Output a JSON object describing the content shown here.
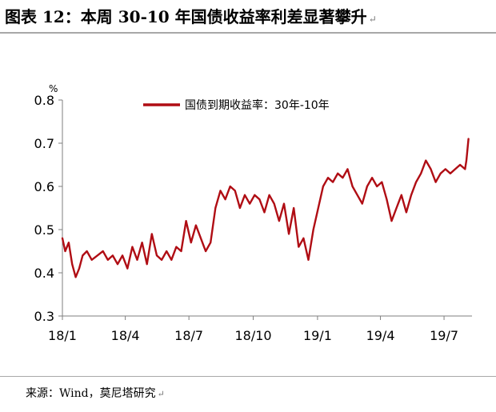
{
  "title": "图表 12：本周 30-10 年国债收益率利差显著攀升",
  "title_mark": "↵",
  "source": "来源：Wind，莫尼塔研究",
  "source_mark": "↵",
  "chart_data": {
    "type": "line",
    "title": "图表 12：本周 30-10 年国债收益率利差显著攀升",
    "xlabel": "",
    "ylabel": "%",
    "ylim": [
      0.3,
      0.8
    ],
    "yticks": [
      0.3,
      0.4,
      0.5,
      0.6,
      0.7,
      0.8
    ],
    "ytick_labels": [
      "0.3",
      "0.4",
      "0.5",
      "0.6",
      "0.7",
      "0.8"
    ],
    "xlim": [
      "2018-01-01",
      "2019-08-10"
    ],
    "xticks": [
      "2018-01-01",
      "2018-04-01",
      "2018-07-01",
      "2018-10-01",
      "2019-01-01",
      "2019-04-01",
      "2019-07-01"
    ],
    "xtick_labels": [
      "18/1",
      "18/4",
      "18/7",
      "18/10",
      "19/1",
      "19/4",
      "19/7"
    ],
    "grid": false,
    "legend_position": "top",
    "color": "#b00d14",
    "series": [
      {
        "name": "国债到期收益率：30年-10年",
        "x": [
          "2018-01-01",
          "2018-01-05",
          "2018-01-10",
          "2018-01-15",
          "2018-01-20",
          "2018-01-25",
          "2018-01-30",
          "2018-02-05",
          "2018-02-12",
          "2018-02-20",
          "2018-02-28",
          "2018-03-07",
          "2018-03-14",
          "2018-03-21",
          "2018-03-28",
          "2018-04-04",
          "2018-04-11",
          "2018-04-18",
          "2018-04-25",
          "2018-05-02",
          "2018-05-09",
          "2018-05-16",
          "2018-05-23",
          "2018-05-30",
          "2018-06-06",
          "2018-06-13",
          "2018-06-20",
          "2018-06-27",
          "2018-07-04",
          "2018-07-11",
          "2018-07-18",
          "2018-07-25",
          "2018-08-01",
          "2018-08-08",
          "2018-08-15",
          "2018-08-22",
          "2018-08-29",
          "2018-09-05",
          "2018-09-12",
          "2018-09-19",
          "2018-09-26",
          "2018-10-03",
          "2018-10-10",
          "2018-10-17",
          "2018-10-24",
          "2018-10-31",
          "2018-11-07",
          "2018-11-14",
          "2018-11-21",
          "2018-11-28",
          "2018-12-05",
          "2018-12-12",
          "2018-12-19",
          "2018-12-26",
          "2019-01-02",
          "2019-01-09",
          "2019-01-16",
          "2019-01-23",
          "2019-01-30",
          "2019-02-06",
          "2019-02-13",
          "2019-02-20",
          "2019-02-27",
          "2019-03-06",
          "2019-03-13",
          "2019-03-20",
          "2019-03-27",
          "2019-04-03",
          "2019-04-10",
          "2019-04-17",
          "2019-04-24",
          "2019-05-01",
          "2019-05-08",
          "2019-05-15",
          "2019-05-22",
          "2019-05-29",
          "2019-06-05",
          "2019-06-12",
          "2019-06-19",
          "2019-06-26",
          "2019-07-03",
          "2019-07-10",
          "2019-07-17",
          "2019-07-24",
          "2019-07-31",
          "2019-08-02",
          "2019-08-05"
        ],
        "values": [
          0.48,
          0.45,
          0.47,
          0.42,
          0.39,
          0.41,
          0.44,
          0.45,
          0.43,
          0.44,
          0.45,
          0.43,
          0.44,
          0.42,
          0.44,
          0.41,
          0.46,
          0.43,
          0.47,
          0.42,
          0.49,
          0.44,
          0.43,
          0.45,
          0.43,
          0.46,
          0.45,
          0.52,
          0.47,
          0.51,
          0.48,
          0.45,
          0.47,
          0.55,
          0.59,
          0.57,
          0.6,
          0.59,
          0.55,
          0.58,
          0.56,
          0.58,
          0.57,
          0.54,
          0.58,
          0.56,
          0.52,
          0.56,
          0.49,
          0.55,
          0.46,
          0.48,
          0.43,
          0.5,
          0.55,
          0.6,
          0.62,
          0.61,
          0.63,
          0.62,
          0.64,
          0.6,
          0.58,
          0.56,
          0.6,
          0.62,
          0.6,
          0.61,
          0.57,
          0.52,
          0.55,
          0.58,
          0.54,
          0.58,
          0.61,
          0.63,
          0.66,
          0.64,
          0.61,
          0.63,
          0.64,
          0.63,
          0.64,
          0.65,
          0.64,
          0.66,
          0.71
        ]
      }
    ]
  }
}
